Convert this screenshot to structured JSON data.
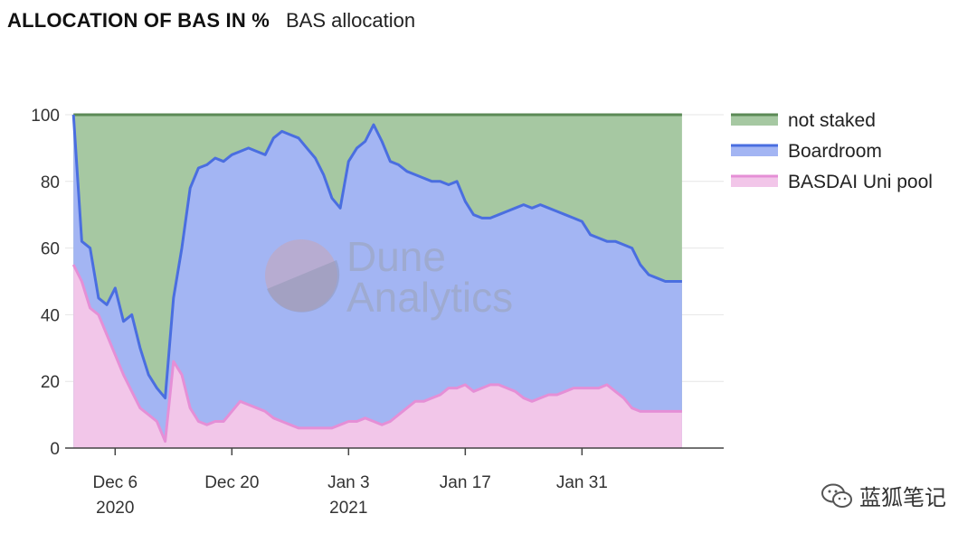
{
  "header": {
    "title": "ALLOCATION OF BAS IN %",
    "subtitle": "BAS allocation"
  },
  "watermark": {
    "line1": "Dune",
    "line2": "Analytics",
    "icon": "dune-logo-icon"
  },
  "credit": {
    "icon": "wechat-icon",
    "label": "蓝狐笔记"
  },
  "colors": {
    "not_staked_fill": "#a6c8a2",
    "not_staked_line": "#5b8a56",
    "boardroom_fill": "#a3b5f3",
    "boardroom_line": "#4a6ee0",
    "uni_fill": "#f2c6e9",
    "uni_line": "#e58fd6",
    "grid": "#e6e6e6"
  },
  "chart_data": {
    "type": "area",
    "stacked": true,
    "title": "BAS allocation",
    "x_axis": {
      "range": [
        "2020-11-30",
        "2021-02-17"
      ],
      "ticks": [
        {
          "date": "2020-12-06",
          "label": "Dec 6",
          "sublabel": "2020"
        },
        {
          "date": "2020-12-20",
          "label": "Dec 20",
          "sublabel": ""
        },
        {
          "date": "2021-01-03",
          "label": "Jan 3",
          "sublabel": "2021"
        },
        {
          "date": "2021-01-17",
          "label": "Jan 17",
          "sublabel": ""
        },
        {
          "date": "2021-01-31",
          "label": "Jan 31",
          "sublabel": ""
        }
      ]
    },
    "y_axis": {
      "range": [
        0,
        100
      ],
      "ticks": [
        0,
        20,
        40,
        60,
        80,
        100
      ]
    },
    "grid": true,
    "legend_position": "right",
    "legend": [
      "not staked",
      "Boardroom",
      "BASDAI Uni pool"
    ],
    "x": [
      "2020-12-01",
      "2020-12-02",
      "2020-12-03",
      "2020-12-04",
      "2020-12-05",
      "2020-12-06",
      "2020-12-07",
      "2020-12-08",
      "2020-12-09",
      "2020-12-10",
      "2020-12-11",
      "2020-12-12",
      "2020-12-13",
      "2020-12-14",
      "2020-12-15",
      "2020-12-16",
      "2020-12-17",
      "2020-12-18",
      "2020-12-19",
      "2020-12-20",
      "2020-12-21",
      "2020-12-22",
      "2020-12-23",
      "2020-12-24",
      "2020-12-25",
      "2020-12-26",
      "2020-12-27",
      "2020-12-28",
      "2020-12-29",
      "2020-12-30",
      "2020-12-31",
      "2021-01-01",
      "2021-01-02",
      "2021-01-03",
      "2021-01-04",
      "2021-01-05",
      "2021-01-06",
      "2021-01-07",
      "2021-01-08",
      "2021-01-09",
      "2021-01-10",
      "2021-01-11",
      "2021-01-12",
      "2021-01-13",
      "2021-01-14",
      "2021-01-15",
      "2021-01-16",
      "2021-01-17",
      "2021-01-18",
      "2021-01-19",
      "2021-01-20",
      "2021-01-21",
      "2021-01-22",
      "2021-01-23",
      "2021-01-24",
      "2021-01-25",
      "2021-01-26",
      "2021-01-27",
      "2021-01-28",
      "2021-01-29",
      "2021-01-30",
      "2021-01-31",
      "2021-02-01",
      "2021-02-02",
      "2021-02-03",
      "2021-02-04",
      "2021-02-05",
      "2021-02-06",
      "2021-02-07",
      "2021-02-08",
      "2021-02-09",
      "2021-02-10",
      "2021-02-11",
      "2021-02-12"
    ],
    "series": [
      {
        "name": "BASDAI Uni pool",
        "values": [
          55,
          50,
          42,
          40,
          34,
          28,
          22,
          17,
          12,
          10,
          8,
          2,
          26,
          22,
          12,
          8,
          7,
          8,
          8,
          11,
          14,
          13,
          12,
          11,
          9,
          8,
          7,
          6,
          6,
          6,
          6,
          6,
          7,
          8,
          8,
          9,
          8,
          7,
          8,
          10,
          12,
          14,
          14,
          15,
          16,
          18,
          18,
          19,
          17,
          18,
          19,
          19,
          18,
          17,
          15,
          14,
          15,
          16,
          16,
          17,
          18,
          18,
          18,
          18,
          19,
          17,
          15,
          12,
          11,
          11,
          11,
          11,
          11,
          11
        ]
      },
      {
        "name": "Boardroom",
        "values": [
          100,
          62,
          60,
          45,
          43,
          48,
          38,
          40,
          30,
          22,
          18,
          15,
          45,
          60,
          78,
          84,
          85,
          87,
          86,
          88,
          89,
          90,
          89,
          88,
          93,
          95,
          94,
          93,
          90,
          87,
          82,
          75,
          72,
          86,
          90,
          92,
          97,
          92,
          86,
          85,
          83,
          82,
          81,
          80,
          80,
          79,
          80,
          74,
          70,
          69,
          69,
          70,
          71,
          72,
          73,
          72,
          73,
          72,
          71,
          70,
          69,
          68,
          64,
          63,
          62,
          62,
          61,
          60,
          55,
          52,
          51,
          50,
          50,
          50
        ]
      },
      {
        "name": "not staked",
        "values": [
          100,
          100,
          100,
          100,
          100,
          100,
          100,
          100,
          100,
          100,
          100,
          100,
          100,
          100,
          100,
          100,
          100,
          100,
          100,
          100,
          100,
          100,
          100,
          100,
          100,
          100,
          100,
          100,
          100,
          100,
          100,
          100,
          100,
          100,
          100,
          100,
          100,
          100,
          100,
          100,
          100,
          100,
          100,
          100,
          100,
          100,
          100,
          100,
          100,
          100,
          100,
          100,
          100,
          100,
          100,
          100,
          100,
          100,
          100,
          100,
          100,
          100,
          100,
          100,
          100,
          100,
          100,
          100,
          100,
          100,
          100,
          100,
          100,
          100
        ]
      }
    ]
  }
}
